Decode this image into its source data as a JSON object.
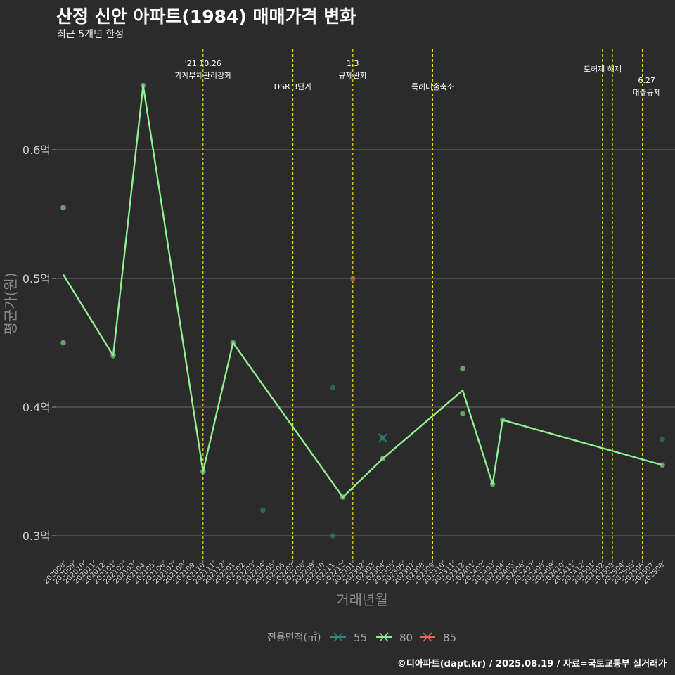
{
  "title": "산정 신안 아파트(1984) 매매가격 변화",
  "subtitle": "최근 5개년 한정",
  "caption": "©디아파트(dapt.kr) / 2025.08.19 / 자료=국토교통부 실거래가",
  "colors": {
    "background": "#2b2b2b",
    "grid": "#6a6a6a",
    "event_line": "#e6e600",
    "s55": "#2a8a82",
    "s80": "#90ee90",
    "s85": "#e8645a"
  },
  "chart_data": {
    "type": "line",
    "xlabel": "거래년월",
    "ylabel": "평균가(원)",
    "ylim": [
      0.285,
      0.69
    ],
    "yticks": [
      {
        "value": 0.3,
        "label": "0.3억"
      },
      {
        "value": 0.4,
        "label": "0.4억"
      },
      {
        "value": 0.5,
        "label": "0.5억"
      },
      {
        "value": 0.6,
        "label": "0.6억"
      }
    ],
    "x_categories": [
      "202008",
      "202009",
      "202010",
      "202011",
      "202012",
      "202101",
      "202102",
      "202103",
      "202104",
      "202105",
      "202106",
      "202107",
      "202108",
      "202109",
      "202110",
      "202111",
      "202112",
      "202201",
      "202202",
      "202203",
      "202204",
      "202205",
      "202206",
      "202207",
      "202208",
      "202209",
      "202210",
      "202211",
      "202212",
      "202301",
      "202302",
      "202303",
      "202304",
      "202305",
      "202306",
      "202307",
      "202308",
      "202309",
      "202310",
      "202311",
      "202312",
      "202401",
      "202402",
      "202403",
      "202404",
      "202405",
      "202406",
      "202407",
      "202408",
      "202409",
      "202410",
      "202411",
      "202412",
      "202501",
      "202502",
      "202503",
      "202504",
      "202505",
      "202506",
      "202507",
      "202508"
    ],
    "legend": {
      "title": "전용면적(㎡)",
      "position": "bottom",
      "entries": [
        "55",
        "80",
        "85"
      ]
    },
    "events": [
      {
        "x": "202110",
        "lines": [
          "'21.10.26",
          "가계부채관리강화"
        ]
      },
      {
        "x": "202207",
        "lines": [
          "DSR 3단계"
        ]
      },
      {
        "x": "202301",
        "lines": [
          "1.3",
          "규제완화"
        ]
      },
      {
        "x": "202309",
        "lines": [
          "특례대출축소"
        ]
      },
      {
        "x": "202502",
        "lines": []
      },
      {
        "x": "202503",
        "lines": [
          "토허제 해제"
        ]
      },
      {
        "x": "202506",
        "lines": [
          "6.27",
          "대출규제"
        ]
      }
    ],
    "series": [
      {
        "name": "55",
        "line": [],
        "points": [
          {
            "x": "202204",
            "y": 0.32
          },
          {
            "x": "202211",
            "y": 0.415
          },
          {
            "x": "202211",
            "y": 0.3
          },
          {
            "x": "202304",
            "y": 0.376
          },
          {
            "x": "202508",
            "y": 0.375
          }
        ]
      },
      {
        "name": "80",
        "line": [
          {
            "x": "202008",
            "y": 0.503
          },
          {
            "x": "202101",
            "y": 0.44
          },
          {
            "x": "202104",
            "y": 0.65
          },
          {
            "x": "202110",
            "y": 0.35
          },
          {
            "x": "202201",
            "y": 0.45
          },
          {
            "x": "202212",
            "y": 0.33
          },
          {
            "x": "202304",
            "y": 0.36
          },
          {
            "x": "202312",
            "y": 0.413
          },
          {
            "x": "202403",
            "y": 0.34
          },
          {
            "x": "202404",
            "y": 0.39
          },
          {
            "x": "202508",
            "y": 0.355
          }
        ],
        "points": [
          {
            "x": "202008",
            "y": 0.555
          },
          {
            "x": "202008",
            "y": 0.45
          },
          {
            "x": "202101",
            "y": 0.44
          },
          {
            "x": "202104",
            "y": 0.65
          },
          {
            "x": "202110",
            "y": 0.35
          },
          {
            "x": "202201",
            "y": 0.45
          },
          {
            "x": "202212",
            "y": 0.33
          },
          {
            "x": "202304",
            "y": 0.36
          },
          {
            "x": "202312",
            "y": 0.43
          },
          {
            "x": "202312",
            "y": 0.395
          },
          {
            "x": "202403",
            "y": 0.34
          },
          {
            "x": "202404",
            "y": 0.39
          },
          {
            "x": "202508",
            "y": 0.355
          }
        ]
      },
      {
        "name": "85",
        "line": [],
        "points": [
          {
            "x": "202301",
            "y": 0.5
          }
        ]
      }
    ]
  }
}
